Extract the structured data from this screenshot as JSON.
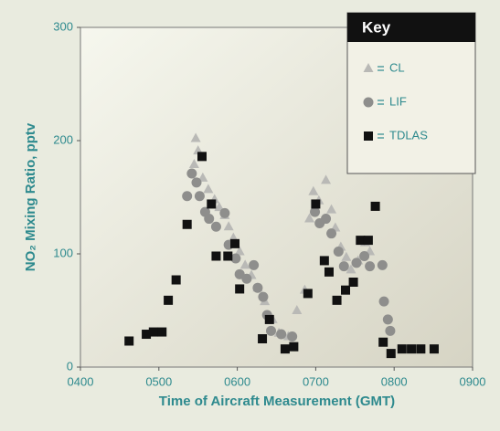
{
  "chart_data": {
    "type": "scatter",
    "xlabel": "Time of Aircraft Measurement (GMT)",
    "ylabel": "NO₂ Mixing Ratio, pptv",
    "legend_title": "Key",
    "legend": "upper right",
    "xlim": [
      4,
      9
    ],
    "xticks": [
      {
        "value": 4,
        "label": "0400"
      },
      {
        "value": 5,
        "label": "0500"
      },
      {
        "value": 6,
        "label": "0600"
      },
      {
        "value": 7,
        "label": "0700"
      },
      {
        "value": 8,
        "label": "0800"
      },
      {
        "value": 9,
        "label": "0900"
      }
    ],
    "ylim": [
      0,
      300
    ],
    "yticks": [
      0,
      100,
      200,
      300
    ],
    "series": [
      {
        "name": "CL",
        "color": "#b9b9b6",
        "marker": "triangle",
        "x": [
          5.47,
          5.5,
          5.45,
          5.56,
          5.63,
          5.71,
          5.77,
          5.84,
          5.89,
          5.95,
          6.03,
          6.1,
          6.18,
          6.26,
          6.35,
          6.45,
          6.53,
          6.65,
          6.76,
          6.86,
          6.92,
          6.97,
          7.04,
          7.13,
          7.2,
          7.25,
          7.32,
          7.39,
          7.45,
          7.54,
          7.63,
          7.69
        ],
        "values": [
          202,
          191,
          179,
          167,
          157,
          148,
          141,
          134,
          124,
          114,
          102,
          90,
          81,
          70,
          58,
          42,
          30,
          27,
          50,
          68,
          131,
          155,
          147,
          165,
          139,
          123,
          106,
          97,
          86,
          94,
          110,
          102
        ]
      },
      {
        "name": "LIF",
        "color": "#8e8e8c",
        "marker": "circle",
        "x": [
          5.42,
          5.48,
          5.36,
          5.52,
          5.59,
          5.64,
          5.73,
          5.84,
          5.89,
          5.98,
          6.03,
          6.12,
          6.21,
          6.26,
          6.33,
          6.38,
          6.43,
          6.56,
          6.7,
          6.99,
          7.05,
          7.13,
          7.2,
          7.29,
          7.36,
          7.52,
          7.62,
          7.69,
          7.85,
          7.87,
          7.92,
          7.95
        ],
        "values": [
          171,
          163,
          151,
          151,
          137,
          131,
          124,
          136,
          108,
          96,
          82,
          78,
          90,
          70,
          62,
          46,
          32,
          29,
          27,
          137,
          127,
          131,
          118,
          102,
          89,
          92,
          98,
          89,
          90,
          58,
          42,
          32
        ]
      },
      {
        "name": "TDLAS",
        "color": "#111111",
        "marker": "square",
        "x": [
          4.62,
          4.84,
          4.93,
          5.04,
          5.12,
          5.22,
          5.36,
          5.55,
          5.67,
          5.73,
          5.88,
          5.97,
          6.03,
          6.32,
          6.41,
          6.61,
          6.72,
          6.9,
          7.0,
          7.11,
          7.17,
          7.27,
          7.38,
          7.48,
          7.57,
          7.67,
          7.76,
          7.86,
          7.96,
          8.1,
          8.22,
          8.34,
          8.51
        ],
        "values": [
          23,
          29,
          31,
          31,
          59,
          77,
          126,
          186,
          144,
          98,
          98,
          109,
          69,
          25,
          42,
          16,
          18,
          65,
          144,
          94,
          84,
          59,
          68,
          75,
          112,
          112,
          142,
          22,
          12,
          16,
          16,
          16,
          16
        ]
      }
    ]
  }
}
